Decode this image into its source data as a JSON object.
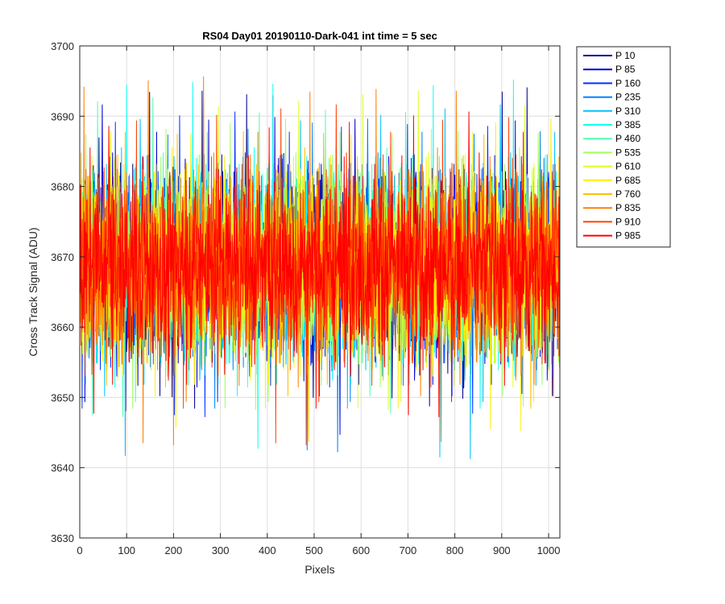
{
  "chart_data": {
    "type": "line",
    "title": "RS04 Day01 20190110-Dark-041 int time = 5 sec",
    "xlabel": "Pixels",
    "ylabel": "Cross Track Signal (ADU)",
    "xlim": [
      0,
      1024
    ],
    "ylim": [
      3630,
      3700
    ],
    "xticks": [
      0,
      100,
      200,
      300,
      400,
      500,
      600,
      700,
      800,
      900,
      1000
    ],
    "yticks": [
      3630,
      3640,
      3650,
      3660,
      3670,
      3680,
      3690,
      3700
    ],
    "grid": true,
    "legend_position": "outside-top-right",
    "n_points": 1024,
    "series": [
      {
        "name": "P 10",
        "color": "#00008f",
        "center": 3669,
        "range": [
          3648,
          3695
        ]
      },
      {
        "name": "P 85",
        "color": "#0000d0",
        "center": 3669,
        "range": [
          3642,
          3692
        ]
      },
      {
        "name": "P 160",
        "color": "#0030ff",
        "center": 3669,
        "range": [
          3645,
          3691
        ]
      },
      {
        "name": "P 235",
        "color": "#0080ff",
        "center": 3669,
        "range": [
          3640,
          3690
        ]
      },
      {
        "name": "P 310",
        "color": "#00c0ff",
        "center": 3669,
        "range": [
          3639,
          3692
        ]
      },
      {
        "name": "P 385",
        "color": "#10ffef",
        "center": 3669,
        "range": [
          3640,
          3697
        ]
      },
      {
        "name": "P 460",
        "color": "#50ffaf",
        "center": 3669,
        "range": [
          3645,
          3693
        ]
      },
      {
        "name": "P 535",
        "color": "#9fff60",
        "center": 3669,
        "range": [
          3646,
          3690
        ]
      },
      {
        "name": "P 610",
        "color": "#dfff20",
        "center": 3669,
        "range": [
          3646,
          3694
        ]
      },
      {
        "name": "P 685",
        "color": "#ffef00",
        "center": 3669,
        "range": [
          3643,
          3690
        ]
      },
      {
        "name": "P 760",
        "color": "#ffbf00",
        "center": 3669,
        "range": [
          3641,
          3690
        ]
      },
      {
        "name": "P 835",
        "color": "#ff8000",
        "center": 3669,
        "range": [
          3641,
          3696
        ]
      },
      {
        "name": "P 910",
        "color": "#ff4000",
        "center": 3669,
        "range": [
          3641,
          3692
        ]
      },
      {
        "name": "P 985",
        "color": "#ff0000",
        "center": 3669,
        "range": [
          3645,
          3691
        ]
      }
    ]
  }
}
